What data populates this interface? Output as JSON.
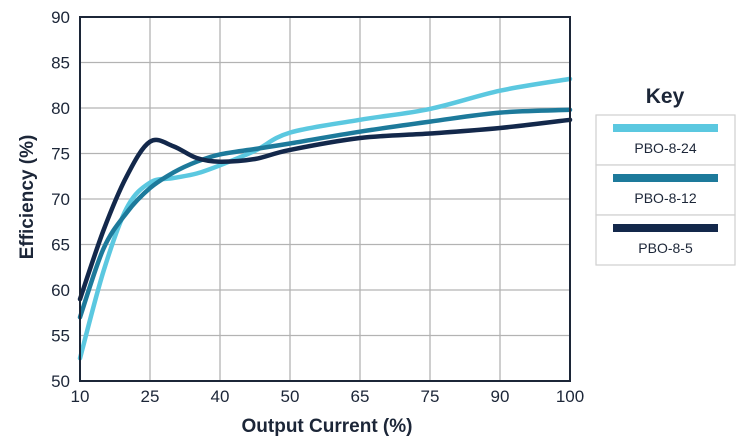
{
  "chart_data": {
    "type": "line",
    "title": "",
    "xlabel": "Output Current (%)",
    "ylabel": "Efficiency (%)",
    "x_ticks": [
      "10",
      "25",
      "40",
      "50",
      "65",
      "75",
      "90",
      "100"
    ],
    "ylim": [
      50,
      90
    ],
    "y_ticks": [
      50,
      55,
      60,
      65,
      70,
      75,
      80,
      85,
      90
    ],
    "grid": true,
    "legend": {
      "title": "Key",
      "placement": "right"
    },
    "series": [
      {
        "name": "PBO-8-24",
        "color": "#5bc8e0",
        "x": [
          "10",
          "15",
          "20",
          "25",
          "30",
          "35",
          "40",
          "45",
          "50",
          "65",
          "75",
          "90",
          "100"
        ],
        "values": [
          52.5,
          62,
          69,
          71.8,
          72.3,
          72.8,
          73.7,
          75.3,
          77.3,
          78.7,
          79.9,
          81.9,
          83.2
        ]
      },
      {
        "name": "PBO-8-12",
        "color": "#1d7a9b",
        "x": [
          "10",
          "15",
          "20",
          "25",
          "30",
          "35",
          "40",
          "45",
          "50",
          "65",
          "75",
          "90",
          "100"
        ],
        "values": [
          57,
          64.5,
          68.5,
          71.2,
          72.9,
          74.1,
          74.9,
          75.5,
          76.1,
          77.4,
          78.5,
          79.5,
          79.8
        ]
      },
      {
        "name": "PBO-8-5",
        "color": "#13284b",
        "x": [
          "10",
          "15",
          "20",
          "25",
          "30",
          "35",
          "40",
          "45",
          "50",
          "65",
          "75",
          "90",
          "100"
        ],
        "values": [
          59,
          66.5,
          72.5,
          76.3,
          75.8,
          74.5,
          74.1,
          74.4,
          75.4,
          76.7,
          77.2,
          77.8,
          78.7
        ]
      }
    ]
  }
}
